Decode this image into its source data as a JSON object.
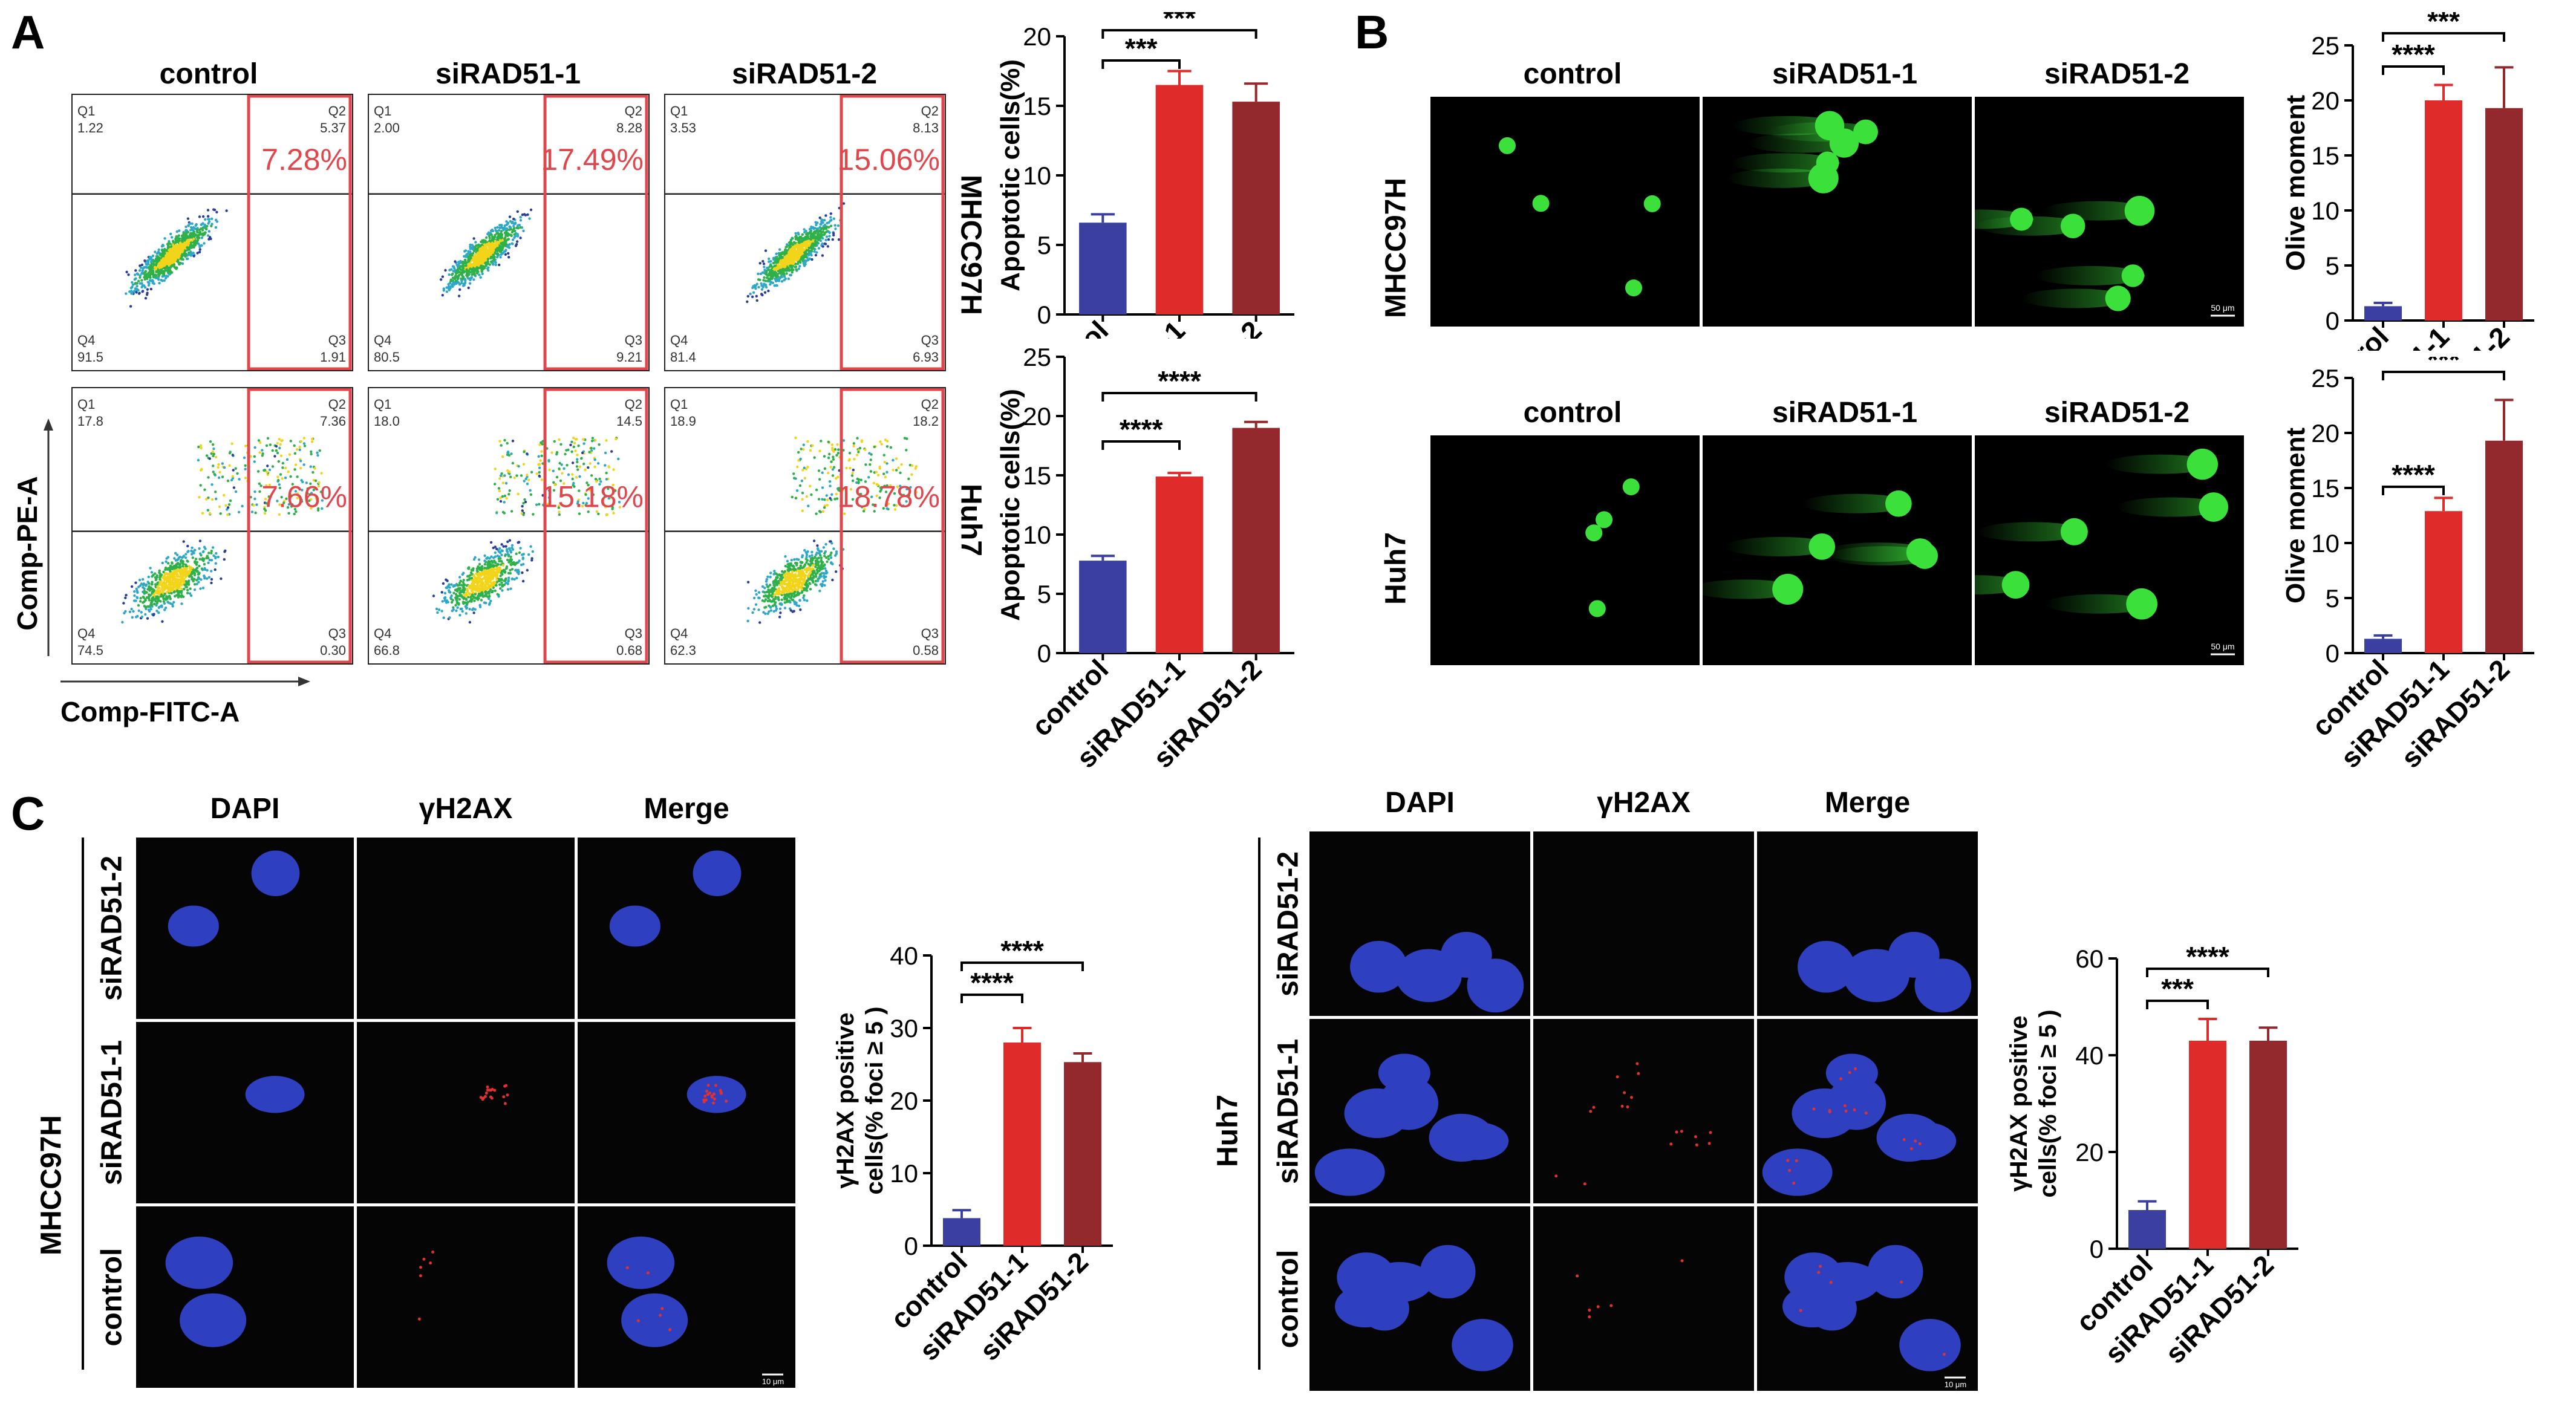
{
  "panel_labels": {
    "a": "A",
    "b": "B",
    "c": "C"
  },
  "groups": [
    "control",
    "siRAD51-1",
    "siRAD51-2"
  ],
  "cell_lines": {
    "mhcc97h": "MHCC97H",
    "huh7": "Huh7"
  },
  "colors": {
    "control": "#3a3fa0",
    "sirad51_1": "#e02b2b",
    "sirad51_2": "#93282d",
    "gate": "#e0474c",
    "comet": "#3be03b",
    "nucleus": "#2e3fbf"
  },
  "flow": {
    "y_axis_label": "Comp-PE-A",
    "x_axis_label": "Comp-FITC-A",
    "quadrant_names": [
      "Q1",
      "Q2",
      "Q3",
      "Q4"
    ],
    "mhcc97h": [
      {
        "q1": "1.22",
        "q2": "5.37",
        "q3": "1.91",
        "q4": "91.5",
        "apoptotic": "7.28%"
      },
      {
        "q1": "2.00",
        "q2": "8.28",
        "q3": "9.21",
        "q4": "80.5",
        "apoptotic": "17.49%"
      },
      {
        "q1": "3.53",
        "q2": "8.13",
        "q3": "6.93",
        "q4": "81.4",
        "apoptotic": "15.06%"
      }
    ],
    "huh7": [
      {
        "q1": "17.8",
        "q2": "7.36",
        "q3": "0.30",
        "q4": "74.5",
        "apoptotic": "7.66%"
      },
      {
        "q1": "18.0",
        "q2": "14.5",
        "q3": "0.68",
        "q4": "66.8",
        "apoptotic": "15.18%"
      },
      {
        "q1": "18.9",
        "q2": "18.2",
        "q3": "0.58",
        "q4": "62.3",
        "apoptotic": "18.78%"
      }
    ]
  },
  "comet_scale_bar": "50 μm",
  "if_channels": [
    "DAPI",
    "γH2AX",
    "Merge"
  ],
  "if_rows": [
    "siRAD51-2",
    "siRAD51-1",
    "control"
  ],
  "if_scale_bar": "10 μm",
  "chart_data": [
    {
      "id": "a1",
      "type": "bar",
      "ylabel": "Apoptotic cells(%)",
      "categories": [
        "control",
        "siRAD51-1",
        "siRAD51-2"
      ],
      "values": [
        6.6,
        16.5,
        15.3
      ],
      "errors": [
        0.6,
        1.0,
        1.3
      ],
      "ylim": [
        0,
        20
      ],
      "yticks": [
        "0",
        "5",
        "10",
        "15",
        "20"
      ],
      "significance": [
        "***",
        "***"
      ]
    },
    {
      "id": "a2",
      "type": "bar",
      "ylabel": "Apoptotic cells(%)",
      "categories": [
        "control",
        "siRAD51-1",
        "siRAD51-2"
      ],
      "values": [
        7.8,
        14.9,
        19.0
      ],
      "errors": [
        0.4,
        0.3,
        0.5
      ],
      "ylim": [
        0,
        25
      ],
      "yticks": [
        "0",
        "5",
        "10",
        "15",
        "20",
        "25"
      ],
      "significance": [
        "****",
        "****"
      ]
    },
    {
      "id": "b1",
      "type": "bar",
      "ylabel": "Olive moment",
      "categories": [
        "control",
        "siRAD51-1",
        "siRAD51-2"
      ],
      "values": [
        1.3,
        20.0,
        19.3
      ],
      "errors": [
        0.3,
        1.4,
        3.7
      ],
      "ylim": [
        0,
        25
      ],
      "yticks": [
        "0",
        "5",
        "10",
        "15",
        "20",
        "25"
      ],
      "significance": [
        "****",
        "***"
      ]
    },
    {
      "id": "b2",
      "type": "bar",
      "ylabel": "Olive moment",
      "categories": [
        "control",
        "siRAD51-1",
        "siRAD51-2"
      ],
      "values": [
        1.3,
        12.9,
        19.3
      ],
      "errors": [
        0.3,
        1.2,
        3.7
      ],
      "ylim": [
        0,
        25
      ],
      "yticks": [
        "0",
        "5",
        "10",
        "15",
        "20",
        "25"
      ],
      "significance": [
        "****",
        "***"
      ]
    },
    {
      "id": "c1",
      "type": "bar",
      "ylabel": "γH2AX positive cells(% foci ≥ 5 )",
      "categories": [
        "control",
        "siRAD51-1",
        "siRAD51-2"
      ],
      "values": [
        3.8,
        28.0,
        25.3
      ],
      "errors": [
        1.1,
        2.0,
        1.2
      ],
      "ylim": [
        0,
        40
      ],
      "yticks": [
        "0",
        "10",
        "20",
        "30",
        "40"
      ],
      "significance": [
        "****",
        "****"
      ]
    },
    {
      "id": "c2",
      "type": "bar",
      "ylabel": "γH2AX positive cells(% foci ≥ 5 )",
      "categories": [
        "control",
        "siRAD51-1",
        "siRAD51-2"
      ],
      "values": [
        8.0,
        43.0,
        43.0
      ],
      "errors": [
        1.8,
        4.5,
        2.7
      ],
      "ylim": [
        0,
        60
      ],
      "yticks": [
        "0",
        "20",
        "40",
        "60"
      ],
      "significance": [
        "***",
        "****"
      ]
    }
  ]
}
